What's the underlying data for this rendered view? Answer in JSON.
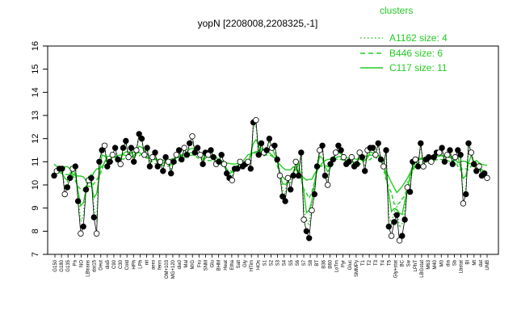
{
  "chart_data": {
    "type": "line",
    "title": "yopN [2208008,2208325,-1]",
    "xlabel": "",
    "ylabel": "",
    "ylim": [
      7,
      16
    ],
    "yticks": [
      7,
      8,
      9,
      10,
      11,
      12,
      13,
      14,
      15,
      16
    ],
    "grid": false,
    "legend": {
      "title": "clusters",
      "placement": "top-right",
      "entries": [
        {
          "label": "A1162 size: 4",
          "style": "dotted"
        },
        {
          "label": "B446 size: 6",
          "style": "dashed"
        },
        {
          "label": "C117 size: 11",
          "style": "solid"
        }
      ]
    },
    "colors": {
      "points": "#000000",
      "profile": "#000000",
      "clusters": "#22cc22"
    },
    "x_tick_labels": [
      "G150",
      "G180",
      "G135",
      "Pa",
      "NO",
      "LBtrans",
      "dat15",
      "Deut",
      "dia5",
      "C90",
      "C30",
      "Cold",
      "HPh",
      "LPh",
      "nit",
      "aero",
      "ferm",
      "OM+103",
      "MG+120",
      "dia0",
      "Mal",
      "M/G",
      "Fru",
      "SNM",
      "Glu",
      "BHM",
      "Heat",
      "Etha",
      "Salt",
      "Gly",
      "HTim",
      "HOs",
      "S1",
      "S2",
      "S3",
      "S4",
      "S5",
      "S6",
      "S7",
      "S8",
      "BT",
      "B36",
      "B60",
      "LoTm",
      "Pyr",
      "Gluc",
      "SMMPy",
      "T1",
      "T2",
      "T3",
      "T4",
      "T5",
      "Gly+stat",
      "BC",
      "Sw",
      "LPhT",
      "LBGstat",
      "M63",
      "M40",
      "M0",
      "dia",
      "Sb",
      "Lbstat",
      "BI",
      "Mt",
      "dat",
      "UNB"
    ],
    "series": [
      {
        "values": [
          10.4,
          10.6,
          10.7,
          10.7,
          9.6,
          9.9,
          10.3,
          10.7,
          10.8,
          9.3,
          7.9,
          8.2,
          9.8,
          10.2,
          10.3,
          8.6,
          7.9,
          11.0,
          11.5,
          11.7,
          10.8,
          11.0,
          11.3,
          11.6,
          11.1,
          10.9,
          11.6,
          11.9,
          11.2,
          11.6,
          11.0,
          11.5,
          12.2,
          12.0,
          11.3,
          11.6,
          10.8,
          11.2,
          11.4,
          10.8,
          11.0,
          10.6,
          11.2,
          11.0,
          10.5,
          11.0,
          11.3,
          11.5,
          11.1,
          11.6,
          11.3,
          11.8,
          12.1,
          11.4,
          11.6,
          11.3,
          10.9,
          11.4,
          11.3,
          11.5,
          11.2,
          10.9,
          11.0,
          11.3,
          10.9,
          10.5,
          10.3,
          10.2,
          10.7,
          10.7,
          11.0,
          10.8,
          10.9,
          11.0,
          10.7,
          12.7,
          12.8,
          11.3,
          11.8,
          11.4,
          11.5,
          12.0,
          11.6,
          11.7,
          11.1,
          10.4,
          9.5,
          9.3,
          10.3,
          9.8,
          10.4,
          11.0,
          10.4,
          11.4,
          8.5,
          8.0,
          7.7,
          8.9,
          9.6,
          10.8,
          11.5,
          11.7,
          10.4,
          10.0,
          10.9,
          11.1,
          11.4,
          11.7,
          11.5,
          11.2,
          10.9,
          11.0,
          11.2,
          10.8,
          10.9,
          11.4,
          11.2,
          10.6,
          11.5,
          11.6,
          11.6,
          11.3,
          11.8,
          11.1,
          10.8,
          11.5,
          8.2,
          7.8,
          8.4,
          8.7,
          7.6,
          7.8,
          8.5,
          9.9,
          9.7,
          11.0,
          11.1,
          10.8,
          11.8,
          10.8,
          11.1,
          11.2,
          11.0,
          11.2,
          11.4,
          11.4,
          11.6,
          11.0,
          11.3,
          11.5,
          10.9,
          11.2,
          11.5,
          11.3,
          9.2,
          9.6,
          11.8,
          11.4,
          10.9,
          10.6,
          10.8,
          10.4,
          10.5,
          10.3
        ]
      }
    ]
  }
}
